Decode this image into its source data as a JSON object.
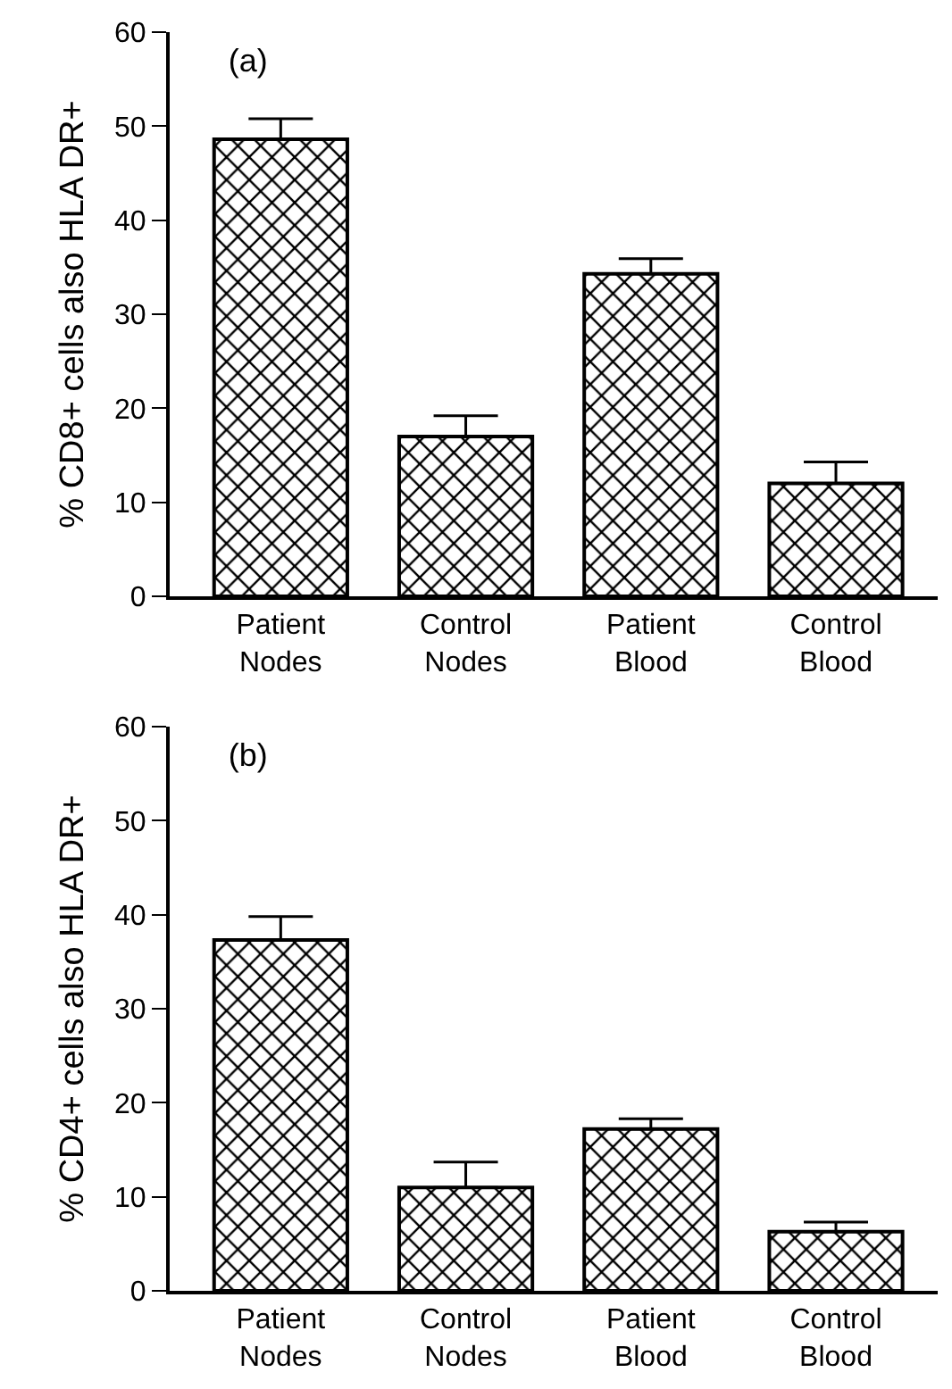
{
  "chart_data": [
    {
      "type": "bar",
      "title": "(a)",
      "ylabel": "% CD8+ cells also HLA DR+",
      "categories": [
        "Patient Nodes",
        "Control Nodes",
        "Patient Blood",
        "Control Blood"
      ],
      "values": [
        48.6,
        17,
        34.3,
        12
      ],
      "errors": [
        [
          48.6,
          50.8
        ],
        [
          17,
          19.2
        ],
        [
          34.3,
          35.9
        ],
        [
          12,
          14.3
        ]
      ],
      "color": "#000000",
      "ylim": [
        0,
        60
      ],
      "yticks": [
        0,
        10,
        20,
        30,
        40,
        50,
        60
      ],
      "grid": false
    },
    {
      "type": "bar",
      "title": "(b)",
      "ylabel": "% CD4+ cells also HLA DR+",
      "categories": [
        "Patient Nodes",
        "Control Nodes",
        "Patient Blood",
        "Control Blood"
      ],
      "values": [
        37.3,
        11,
        17.2,
        6.3
      ],
      "errors": [
        [
          37.3,
          39.8
        ],
        [
          11,
          13.7
        ],
        [
          17.2,
          18.3
        ],
        [
          6.3,
          7.3
        ]
      ],
      "color": "#000000",
      "ylim": [
        0,
        60
      ],
      "yticks": [
        0,
        10,
        20,
        30,
        40,
        50,
        60
      ],
      "grid": false
    }
  ]
}
